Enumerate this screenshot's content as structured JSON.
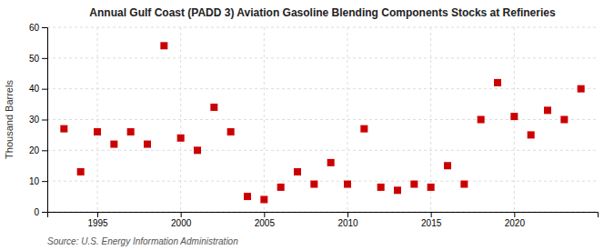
{
  "chart_data": {
    "type": "scatter",
    "title": "Annual Gulf Coast (PADD 3) Aviation Gasoline Blending Components Stocks at Refineries",
    "ylabel": "Thousand Barrels",
    "annotations": [
      "Source: U.S. Energy Information Administration"
    ],
    "x": [
      1993,
      1994,
      1995,
      1996,
      1997,
      1998,
      1999,
      2000,
      2001,
      2002,
      2003,
      2004,
      2005,
      2006,
      2007,
      2008,
      2009,
      2010,
      2011,
      2012,
      2013,
      2014,
      2015,
      2016,
      2017,
      2018,
      2019,
      2020,
      2021,
      2022,
      2023,
      2024
    ],
    "values": [
      27,
      13,
      26,
      22,
      26,
      22,
      54,
      24,
      20,
      34,
      26,
      5,
      4,
      8,
      13,
      9,
      16,
      9,
      27,
      8,
      7,
      9,
      8,
      15,
      9,
      30,
      42,
      31,
      25,
      33,
      30,
      40
    ],
    "color": "#cc0000",
    "marker": "square",
    "xlim": [
      1992.0,
      2025.0
    ],
    "ylim": [
      0,
      60
    ],
    "xticks": [
      1995,
      2000,
      2005,
      2010,
      2015,
      2020
    ],
    "yticks": [
      0,
      10,
      20,
      30,
      40,
      50,
      60
    ],
    "grid": true
  }
}
